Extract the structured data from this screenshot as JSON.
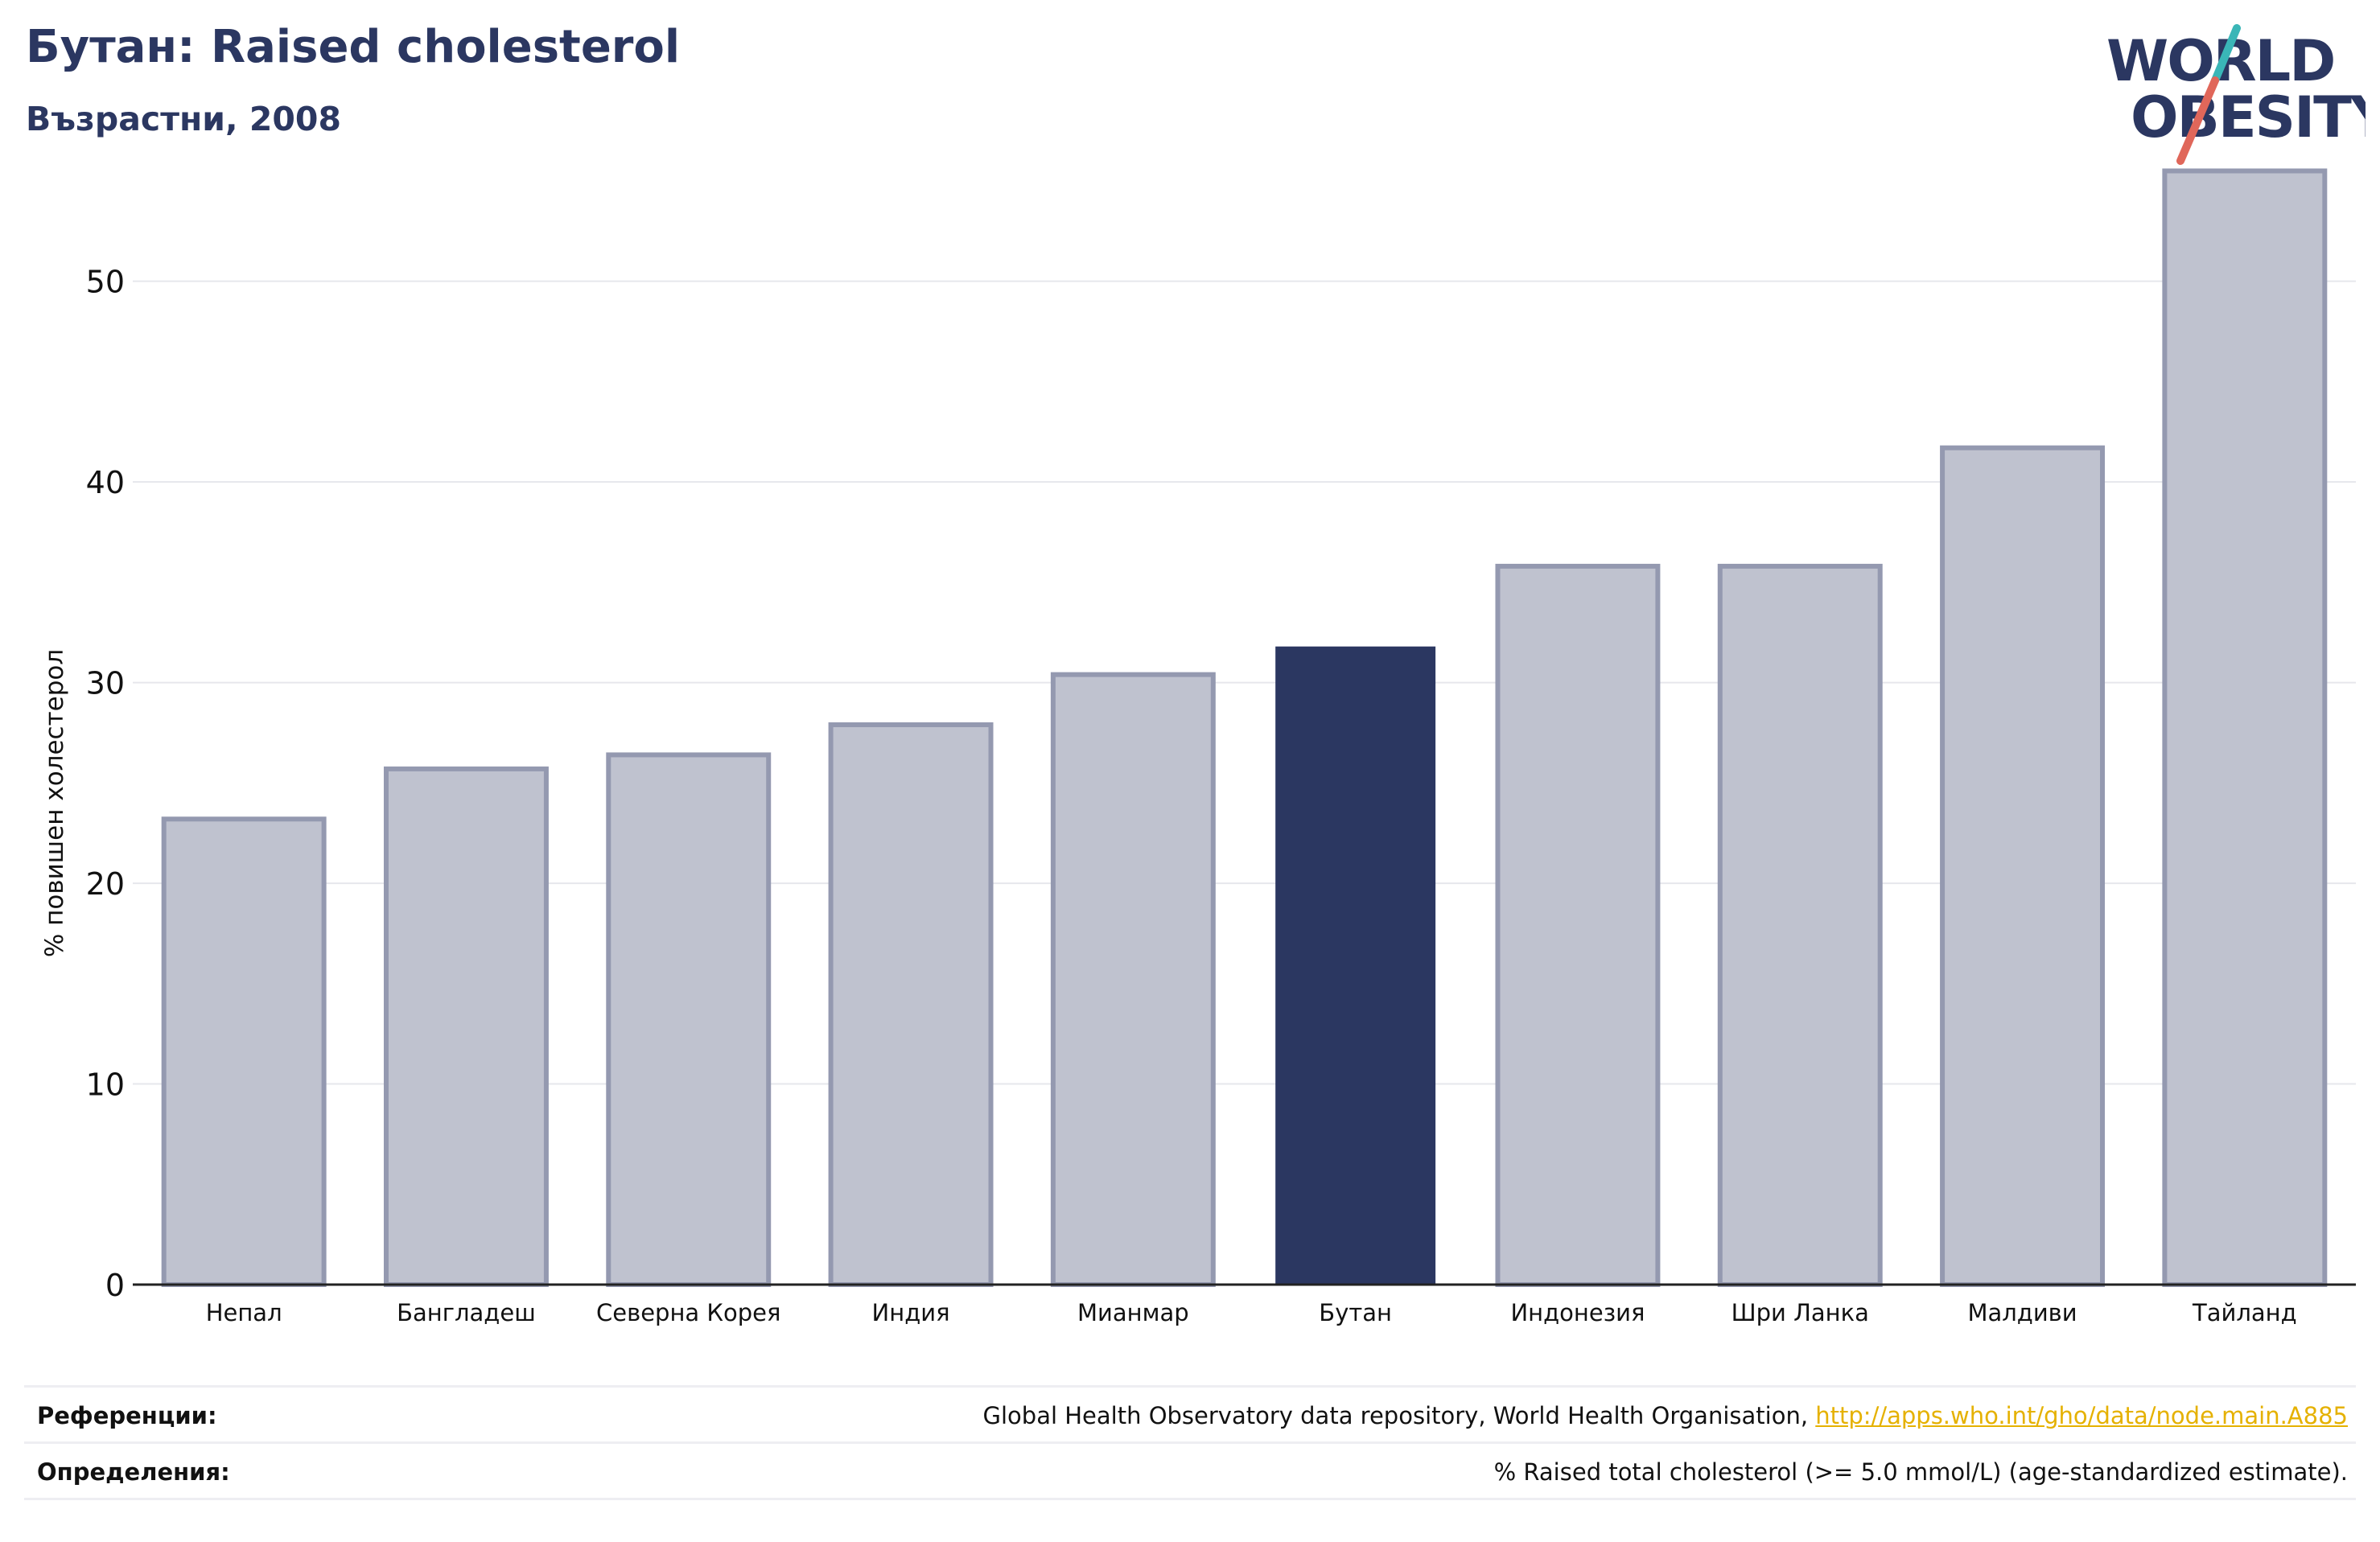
{
  "header": {
    "title": "Бутан: Raised cholesterol",
    "subtitle": "Възрастни, 2008"
  },
  "logo": {
    "line1": "WORLD",
    "line2": "OBESITY",
    "colors": {
      "text": "#2b3761",
      "teal": "#3ab6b7",
      "coral": "#e0675a"
    }
  },
  "chart_data": {
    "type": "bar",
    "ylabel": "% повишен холестерол",
    "ylim": [
      0,
      56
    ],
    "yticks": [
      0,
      10,
      20,
      30,
      40,
      50
    ],
    "grid": true,
    "categories": [
      "Непал",
      "Бангладеш",
      "Северна Корея",
      "Индия",
      "Мианмар",
      "Бутан",
      "Индонезия",
      "Шри Ланка",
      "Малдиви",
      "Тайланд"
    ],
    "values": [
      23.2,
      25.7,
      26.4,
      27.9,
      30.4,
      31.8,
      35.8,
      35.8,
      41.7,
      55.5
    ],
    "highlight": "Бутан",
    "colors": {
      "bar": "#bfc2cf",
      "bar_edge": "#9499b0",
      "highlight": "#2b3761",
      "grid": "#e6e7ec",
      "axis": "#222222"
    }
  },
  "footer": {
    "references_label": "Референции:",
    "references_text": "Global Health Observatory data repository, World Health Organisation, ",
    "references_link": "http://apps.who.int/gho/data/node.main.A885",
    "definitions_label": "Определения:",
    "definitions_text": "% Raised total cholesterol (>= 5.0 mmol/L) (age-standardized estimate)."
  }
}
